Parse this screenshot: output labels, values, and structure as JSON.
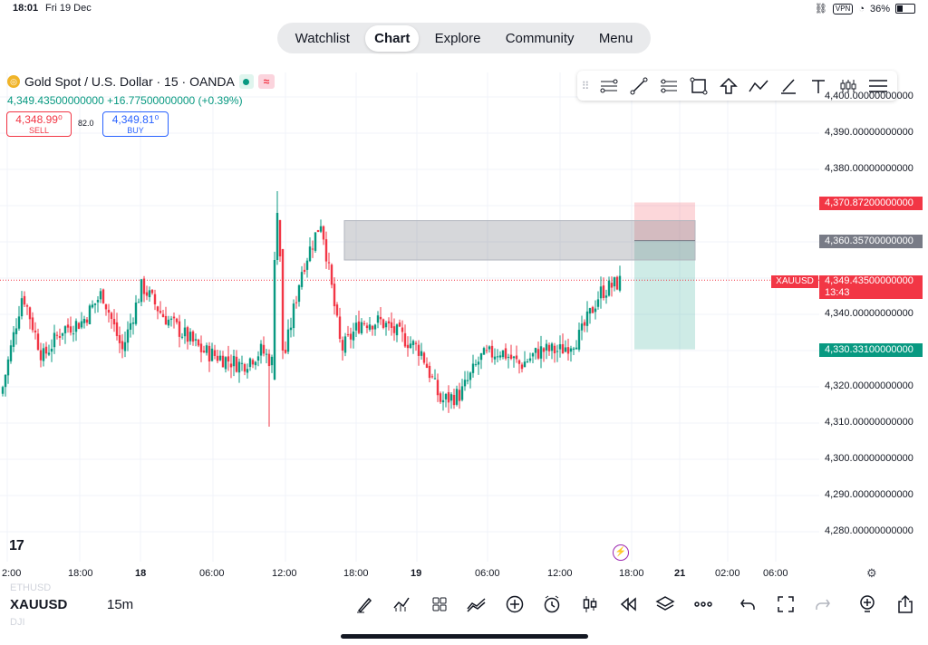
{
  "status_bar": {
    "time": "18:01",
    "date": "Fri 19 Dec",
    "vpn": "VPN",
    "battery": "36%"
  },
  "nav": {
    "items": [
      {
        "label": "Watchlist",
        "active": false
      },
      {
        "label": "Chart",
        "active": true
      },
      {
        "label": "Explore",
        "active": false
      },
      {
        "label": "Community",
        "active": false
      },
      {
        "label": "Menu",
        "active": false
      }
    ]
  },
  "symbol_header": {
    "title": "Gold Spot / U.S. Dollar · 15 · OANDA",
    "icon": "gold-coin-icon",
    "wave_glyph": "≈",
    "price_line": "4,349.43500000000 +16.77500000000 (+0.39%)"
  },
  "trade": {
    "sell_price": "4,348.99⁰",
    "sell_label": "SELL",
    "spread": "82.0",
    "buy_price": "4,349.81⁰",
    "buy_label": "BUY"
  },
  "drawing_tools": [
    "grip-icon",
    "fib-icon",
    "trend-line-icon",
    "parallel-channel-icon",
    "rectangle-icon",
    "arrow-up-icon",
    "path-icon",
    "long-position-icon",
    "text-icon",
    "patterns-icon",
    "more-tools-icon"
  ],
  "colors": {
    "up": "#089981",
    "down": "#f23645",
    "accent": "#2962ff",
    "bg": "#ffffff"
  },
  "chart_data": {
    "type": "candlestick",
    "symbol": "XAUUSD",
    "interval": "15m",
    "ylim": [
      4272,
      4404
    ],
    "y_ticks": [
      "4,390.00000000000",
      "4,380.00000000000",
      "4,340.00000000000",
      "4,320.00000000000",
      "4,310.00000000000",
      "4,300.00000000000",
      "4,290.00000000000",
      "4,280.00000000000"
    ],
    "y_tick_values": [
      4390,
      4380,
      4340,
      4320,
      4310,
      4300,
      4290,
      4280
    ],
    "x_ticks": [
      {
        "label": "2:00",
        "bold": false
      },
      {
        "label": "18:00",
        "bold": false
      },
      {
        "label": "18",
        "bold": true
      },
      {
        "label": "06:00",
        "bold": false
      },
      {
        "label": "12:00",
        "bold": false
      },
      {
        "label": "18:00",
        "bold": false
      },
      {
        "label": "19",
        "bold": true
      },
      {
        "label": "06:00",
        "bold": false
      },
      {
        "label": "12:00",
        "bold": false
      },
      {
        "label": "18:00",
        "bold": false
      },
      {
        "label": "21",
        "bold": true
      },
      {
        "label": "02:00",
        "bold": false
      },
      {
        "label": "06:00",
        "bold": false
      }
    ],
    "price_labels": {
      "target": "4,370.87200000000",
      "entry": "4,360.35700000000",
      "current": "4,349.43500000000",
      "current_countdown": "13:43",
      "current_symbol": "XAUUSD",
      "stop": "4,330.33100000000"
    },
    "levels": {
      "target": 4370.872,
      "entry": 4360.357,
      "current": 4349.435,
      "stop": 4330.331,
      "zone_low": 4355.0
    },
    "anchors": [
      [
        4318,
        4320
      ],
      [
        4330,
        4346
      ],
      [
        4336,
        4328
      ],
      [
        4344,
        4336
      ],
      [
        4332,
        4338
      ],
      [
        4330,
        4346
      ],
      [
        4338,
        4330
      ],
      [
        4340,
        4348
      ],
      [
        4334,
        4340
      ],
      [
        4332,
        4335
      ],
      [
        4326,
        4330
      ],
      [
        4324,
        4328
      ],
      [
        4321,
        4326
      ],
      [
        4325,
        4330
      ],
      [
        4318,
        4324
      ],
      [
        4319,
        4352
      ],
      [
        4354,
        4366
      ],
      [
        4328,
        4330
      ],
      [
        4334,
        4338
      ],
      [
        4332,
        4338
      ],
      [
        4330,
        4334
      ],
      [
        4326,
        4330
      ],
      [
        4318,
        4316
      ],
      [
        4316,
        4318
      ],
      [
        4324,
        4328
      ],
      [
        4326,
        4330
      ],
      [
        4330,
        4326
      ],
      [
        4326,
        4330
      ],
      [
        4332,
        4330
      ],
      [
        4334,
        4334
      ],
      [
        4344,
        4346
      ],
      [
        4350,
        4349
      ]
    ]
  },
  "bottom_bar": {
    "symbol": "XAUUSD",
    "interval": "15m",
    "ghost_top": "ETHUSD",
    "ghost_bottom": "DJI",
    "icons": [
      "brush-icon",
      "indicators-icon",
      "templates-icon",
      "compare-icon",
      "add-icon",
      "alert-icon",
      "candles-icon",
      "replay-icon",
      "layers-icon",
      "more-icon",
      "undo-icon",
      "fullscreen-icon",
      "redo-icon",
      "idea-icon",
      "share-icon"
    ]
  }
}
